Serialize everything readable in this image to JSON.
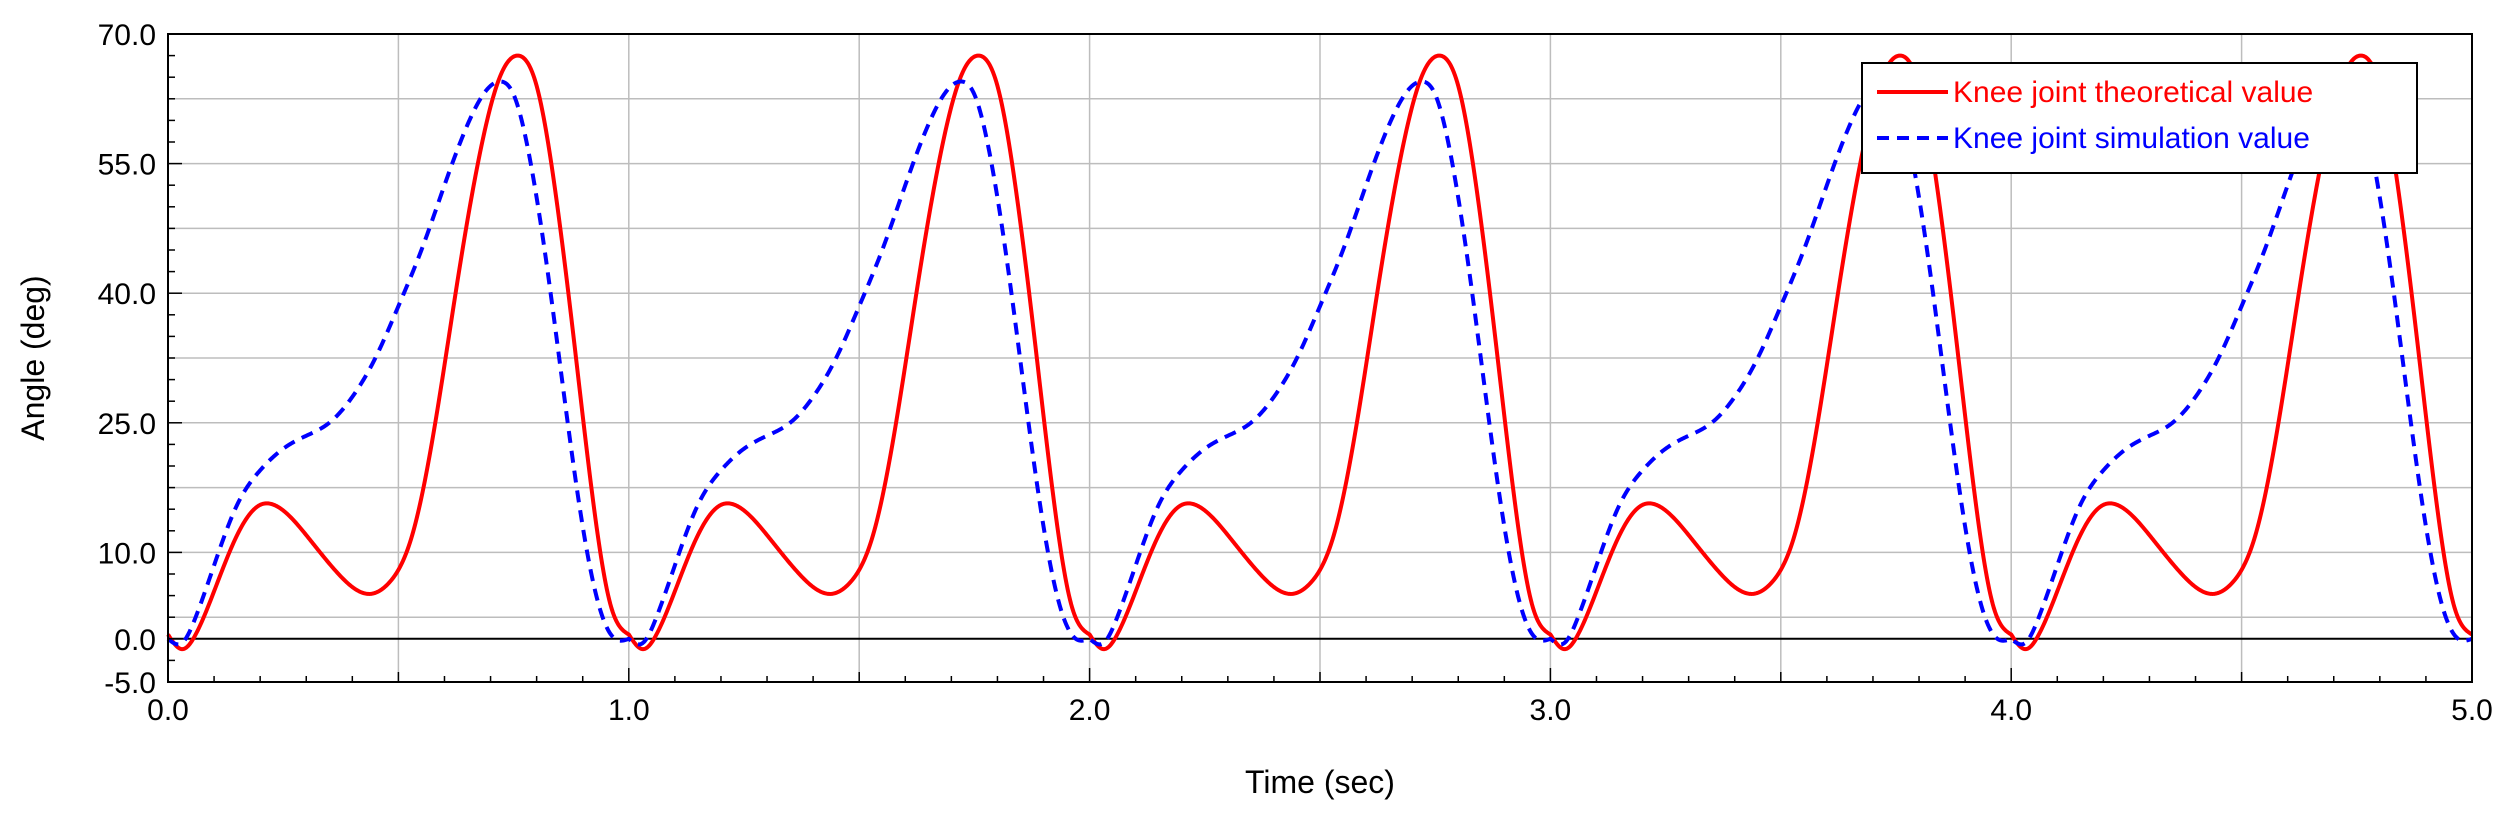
{
  "chart_data": {
    "type": "line",
    "title": "",
    "xlabel": "Time (sec)",
    "ylabel": "Angle (deg)",
    "xlim": [
      0,
      5
    ],
    "ylim": [
      -5,
      70
    ],
    "x_ticks": [
      "0.0",
      "1.0",
      "2.0",
      "3.0",
      "4.0",
      "5.0"
    ],
    "y_ticks": [
      "-5.0",
      "0.0",
      "10.0",
      "25.0",
      "40.0",
      "55.0",
      "70.0"
    ],
    "grid": true,
    "legend_position": "top-right",
    "period_sec": 1.0,
    "series": [
      {
        "name": "Knee joint theoretical value",
        "color": "#ff0000",
        "line_style": "solid",
        "points": [
          [
            0.0,
            0.5
          ],
          [
            0.03,
            -1.2
          ],
          [
            0.06,
            0.5
          ],
          [
            0.1,
            5.5
          ],
          [
            0.15,
            12.0
          ],
          [
            0.2,
            15.5
          ],
          [
            0.23,
            15.5
          ],
          [
            0.3,
            12.0
          ],
          [
            0.37,
            7.5
          ],
          [
            0.44,
            5.2
          ],
          [
            0.48,
            6.5
          ],
          [
            0.53,
            12.0
          ],
          [
            0.58,
            25.0
          ],
          [
            0.63,
            42.0
          ],
          [
            0.68,
            57.0
          ],
          [
            0.72,
            65.0
          ],
          [
            0.76,
            67.5
          ],
          [
            0.8,
            64.0
          ],
          [
            0.84,
            52.0
          ],
          [
            0.88,
            35.0
          ],
          [
            0.92,
            17.0
          ],
          [
            0.96,
            4.0
          ],
          [
            1.0,
            0.5
          ]
        ]
      },
      {
        "name": "Knee joint simulation value",
        "color": "#0000ff",
        "line_style": "dashed",
        "points": [
          [
            0.0,
            0.0
          ],
          [
            0.03,
            -0.5
          ],
          [
            0.06,
            2.5
          ],
          [
            0.1,
            8.5
          ],
          [
            0.15,
            15.5
          ],
          [
            0.2,
            19.5
          ],
          [
            0.25,
            22.0
          ],
          [
            0.3,
            23.5
          ],
          [
            0.35,
            25.0
          ],
          [
            0.4,
            28.0
          ],
          [
            0.45,
            32.5
          ],
          [
            0.5,
            38.5
          ],
          [
            0.55,
            45.0
          ],
          [
            0.6,
            52.5
          ],
          [
            0.65,
            59.5
          ],
          [
            0.7,
            64.0
          ],
          [
            0.72,
            64.5
          ],
          [
            0.75,
            63.0
          ],
          [
            0.78,
            57.0
          ],
          [
            0.82,
            44.0
          ],
          [
            0.86,
            28.0
          ],
          [
            0.9,
            13.0
          ],
          [
            0.94,
            3.0
          ],
          [
            0.97,
            0.0
          ],
          [
            1.0,
            0.0
          ]
        ]
      }
    ]
  }
}
